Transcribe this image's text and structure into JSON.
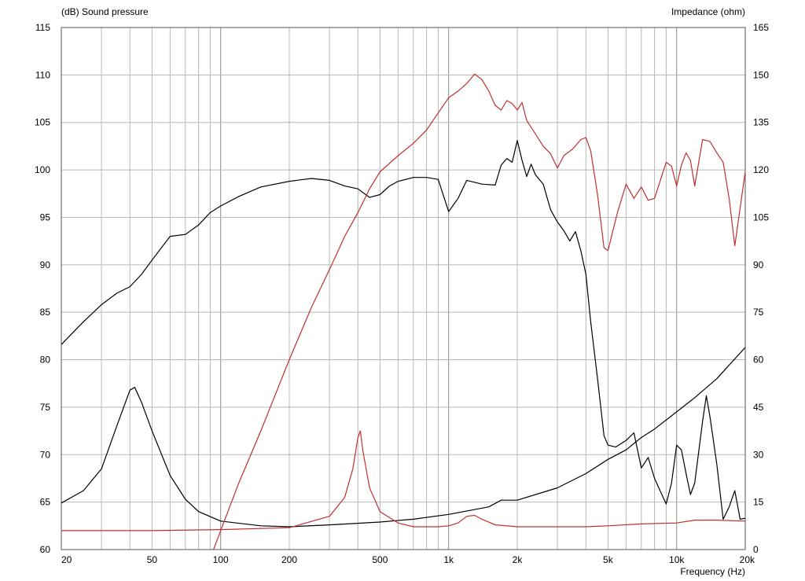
{
  "chart_data": {
    "type": "line",
    "x_scale": "log",
    "grid": true,
    "left_axis_label": "(dB)  Sound pressure",
    "right_axis_label": "Impedance  (ohm)",
    "x_axis_label": "Frequency  (Hz)",
    "xlim": [
      20,
      20000
    ],
    "ylim_left": [
      60,
      115
    ],
    "ylim_right": [
      0,
      165
    ],
    "x_ticks": [
      {
        "value": 20,
        "label": "20"
      },
      {
        "value": 50,
        "label": "50"
      },
      {
        "value": 100,
        "label": "100"
      },
      {
        "value": 200,
        "label": "200"
      },
      {
        "value": 500,
        "label": "500"
      },
      {
        "value": 1000,
        "label": "1k"
      },
      {
        "value": 2000,
        "label": "2k"
      },
      {
        "value": 5000,
        "label": "5k"
      },
      {
        "value": 10000,
        "label": "10k"
      },
      {
        "value": 20000,
        "label": "20k"
      }
    ],
    "y_ticks_left": [
      "60",
      "65",
      "70",
      "75",
      "80",
      "85",
      "90",
      "95",
      "100",
      "105",
      "110",
      "115"
    ],
    "y_ticks_right": [
      "0",
      "15",
      "30",
      "45",
      "60",
      "75",
      "90",
      "105",
      "120",
      "135",
      "150",
      "165"
    ],
    "series": [
      {
        "axis": "left",
        "color": "#000000",
        "points": [
          [
            20,
            81.6
          ],
          [
            25,
            84
          ],
          [
            30,
            85.8
          ],
          [
            35,
            87
          ],
          [
            40,
            87.7
          ],
          [
            45,
            89
          ],
          [
            50,
            90.5
          ],
          [
            60,
            93
          ],
          [
            70,
            93.2
          ],
          [
            80,
            94.2
          ],
          [
            90,
            95.5
          ],
          [
            100,
            96.2
          ],
          [
            120,
            97.2
          ],
          [
            150,
            98.2
          ],
          [
            200,
            98.8
          ],
          [
            250,
            99.1
          ],
          [
            300,
            98.9
          ],
          [
            350,
            98.3
          ],
          [
            400,
            98
          ],
          [
            450,
            97.1
          ],
          [
            500,
            97.4
          ],
          [
            550,
            98.3
          ],
          [
            600,
            98.8
          ],
          [
            700,
            99.2
          ],
          [
            800,
            99.2
          ],
          [
            900,
            99
          ],
          [
            1000,
            95.6
          ],
          [
            1100,
            97
          ],
          [
            1200,
            98.9
          ],
          [
            1400,
            98.5
          ],
          [
            1600,
            98.4
          ],
          [
            1700,
            100.5
          ],
          [
            1800,
            101.2
          ],
          [
            1900,
            100.8
          ],
          [
            2000,
            103.1
          ],
          [
            2100,
            101
          ],
          [
            2200,
            99.3
          ],
          [
            2300,
            100.6
          ],
          [
            2400,
            99.5
          ],
          [
            2600,
            98.5
          ],
          [
            2800,
            95.8
          ],
          [
            3000,
            94.5
          ],
          [
            3200,
            93.6
          ],
          [
            3400,
            92.5
          ],
          [
            3600,
            93.5
          ],
          [
            3800,
            91.5
          ],
          [
            4000,
            89
          ],
          [
            4200,
            84
          ],
          [
            4500,
            78
          ],
          [
            4800,
            72
          ],
          [
            5000,
            71
          ],
          [
            5400,
            70.8
          ],
          [
            6000,
            71.5
          ],
          [
            6500,
            72.3
          ],
          [
            7000,
            68.6
          ],
          [
            7500,
            69.7
          ],
          [
            8000,
            67.5
          ],
          [
            9000,
            64.8
          ],
          [
            9500,
            67
          ],
          [
            10000,
            71
          ],
          [
            10500,
            70.5
          ],
          [
            11000,
            68
          ],
          [
            11500,
            65.8
          ],
          [
            12000,
            67
          ],
          [
            13000,
            73.5
          ],
          [
            13500,
            76.2
          ],
          [
            14000,
            74
          ],
          [
            15000,
            69
          ],
          [
            16000,
            63.2
          ],
          [
            17000,
            64.5
          ],
          [
            18000,
            66.2
          ],
          [
            19000,
            63.2
          ],
          [
            20000,
            63.3
          ]
        ]
      },
      {
        "axis": "left",
        "color": "#000000",
        "points": [
          [
            20,
            64.9
          ],
          [
            25,
            66.2
          ],
          [
            30,
            68.5
          ],
          [
            35,
            73
          ],
          [
            40,
            76.8
          ],
          [
            42,
            77.1
          ],
          [
            45,
            75.5
          ],
          [
            50,
            72.5
          ],
          [
            60,
            67.8
          ],
          [
            70,
            65.3
          ],
          [
            80,
            64
          ],
          [
            100,
            63
          ],
          [
            150,
            62.5
          ],
          [
            200,
            62.4
          ],
          [
            300,
            62.6
          ],
          [
            500,
            62.9
          ],
          [
            700,
            63.2
          ],
          [
            1000,
            63.7
          ],
          [
            1500,
            64.5
          ],
          [
            1700,
            65.2
          ],
          [
            2000,
            65.2
          ],
          [
            3000,
            66.5
          ],
          [
            4000,
            68
          ],
          [
            5000,
            69.5
          ],
          [
            6000,
            70.5
          ],
          [
            7000,
            71.8
          ],
          [
            8000,
            72.7
          ],
          [
            10000,
            74.5
          ],
          [
            12000,
            76
          ],
          [
            15000,
            78
          ],
          [
            20000,
            81.3
          ]
        ]
      },
      {
        "axis": "left",
        "color": "#c03030",
        "points": [
          [
            93,
            60
          ],
          [
            100,
            62
          ],
          [
            120,
            67
          ],
          [
            150,
            72.5
          ],
          [
            200,
            80
          ],
          [
            250,
            85.5
          ],
          [
            300,
            89.5
          ],
          [
            350,
            93
          ],
          [
            400,
            95.5
          ],
          [
            450,
            98
          ],
          [
            500,
            99.8
          ],
          [
            600,
            101.5
          ],
          [
            700,
            102.8
          ],
          [
            800,
            104.2
          ],
          [
            900,
            106
          ],
          [
            1000,
            107.6
          ],
          [
            1100,
            108.3
          ],
          [
            1200,
            109.1
          ],
          [
            1300,
            110.1
          ],
          [
            1400,
            109.5
          ],
          [
            1500,
            108.3
          ],
          [
            1600,
            106.8
          ],
          [
            1700,
            106.3
          ],
          [
            1800,
            107.3
          ],
          [
            1900,
            107
          ],
          [
            2000,
            106.3
          ],
          [
            2100,
            107.1
          ],
          [
            2200,
            105.2
          ],
          [
            2400,
            103.8
          ],
          [
            2600,
            102.5
          ],
          [
            2800,
            101.7
          ],
          [
            3000,
            100.2
          ],
          [
            3200,
            101.5
          ],
          [
            3500,
            102.2
          ],
          [
            3800,
            103.2
          ],
          [
            4000,
            103.4
          ],
          [
            4200,
            102
          ],
          [
            4500,
            97.4
          ],
          [
            4800,
            91.8
          ],
          [
            5000,
            91.5
          ],
          [
            5500,
            95.5
          ],
          [
            6000,
            98.5
          ],
          [
            6500,
            97
          ],
          [
            7000,
            98.2
          ],
          [
            7500,
            96.8
          ],
          [
            8000,
            97
          ],
          [
            9000,
            100.8
          ],
          [
            9500,
            100.4
          ],
          [
            10000,
            98.3
          ],
          [
            10500,
            100.5
          ],
          [
            11000,
            101.8
          ],
          [
            11500,
            101
          ],
          [
            12000,
            98.3
          ],
          [
            13000,
            103.2
          ],
          [
            14000,
            103
          ],
          [
            15000,
            101.8
          ],
          [
            16000,
            100.8
          ],
          [
            17000,
            97
          ],
          [
            18000,
            92
          ],
          [
            19000,
            96
          ],
          [
            20000,
            99.8
          ]
        ]
      },
      {
        "axis": "left",
        "color": "#c03030",
        "points": [
          [
            20,
            62
          ],
          [
            50,
            62
          ],
          [
            100,
            62.1
          ],
          [
            200,
            62.3
          ],
          [
            300,
            63.5
          ],
          [
            350,
            65.5
          ],
          [
            380,
            68.5
          ],
          [
            400,
            71.8
          ],
          [
            410,
            72.5
          ],
          [
            420,
            70.5
          ],
          [
            450,
            66.5
          ],
          [
            500,
            64
          ],
          [
            600,
            62.8
          ],
          [
            700,
            62.4
          ],
          [
            900,
            62.4
          ],
          [
            1000,
            62.5
          ],
          [
            1100,
            62.8
          ],
          [
            1200,
            63.5
          ],
          [
            1300,
            63.6
          ],
          [
            1400,
            63.2
          ],
          [
            1600,
            62.6
          ],
          [
            2000,
            62.4
          ],
          [
            3000,
            62.4
          ],
          [
            4000,
            62.4
          ],
          [
            5000,
            62.5
          ],
          [
            7000,
            62.7
          ],
          [
            10000,
            62.8
          ],
          [
            12000,
            63.1
          ],
          [
            15000,
            63.1
          ],
          [
            20000,
            63
          ]
        ]
      }
    ]
  }
}
